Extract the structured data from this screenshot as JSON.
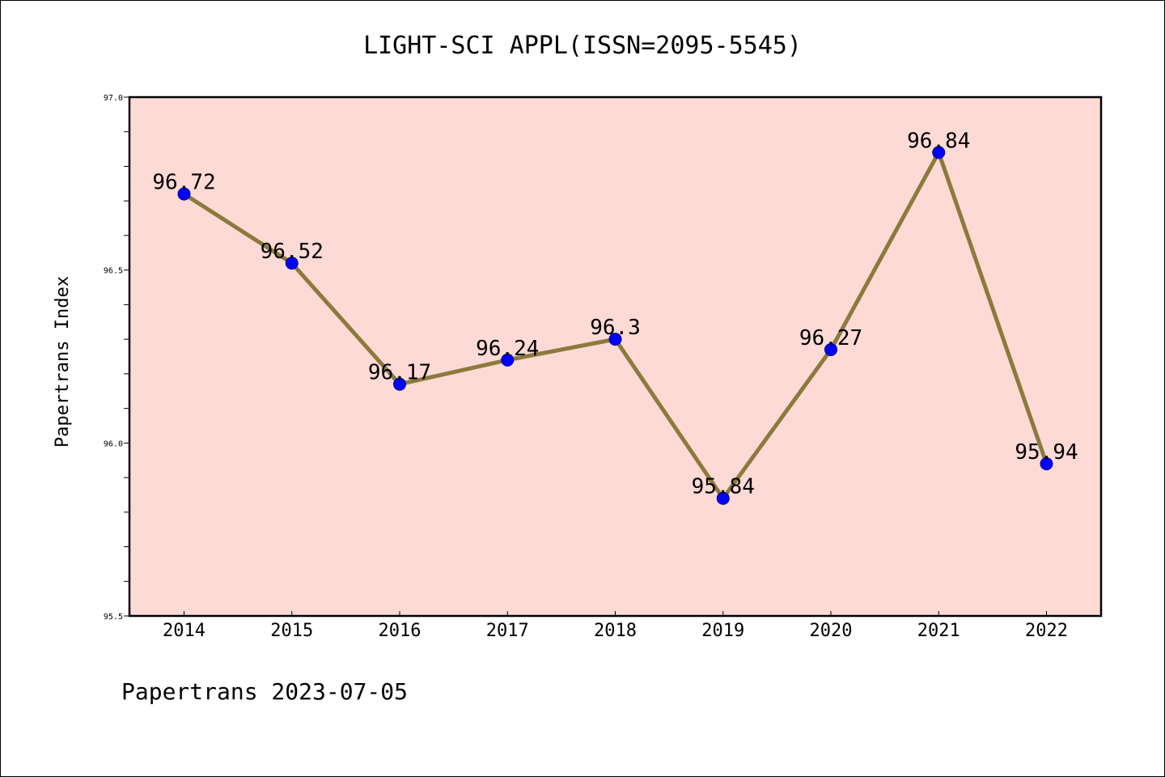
{
  "chart_data": {
    "type": "line",
    "title": "LIGHT-SCI APPL(ISSN=2095-5545)",
    "xlabel": "",
    "ylabel": "Papertrans Index",
    "categories": [
      "2014",
      "2015",
      "2016",
      "2017",
      "2018",
      "2019",
      "2020",
      "2021",
      "2022"
    ],
    "values": [
      96.72,
      96.52,
      96.17,
      96.24,
      96.3,
      95.84,
      96.27,
      96.84,
      95.94
    ],
    "data_labels": [
      "96.72",
      "96.52",
      "96.17",
      "96.24",
      "96.3",
      "95.84",
      "96.27",
      "96.84",
      "95.94"
    ],
    "ylim": [
      95.5,
      97.0
    ],
    "y_ticks": [
      "95.5",
      "96.0",
      "96.5",
      "97.0"
    ],
    "y_tick_values": [
      95.5,
      96.0,
      96.5,
      97.0
    ],
    "grid": false,
    "line_color": "#8c7a3c",
    "marker_color": "#0000ff",
    "plot_background": "#fddad6",
    "footer": "Papertrans 2023-07-05"
  }
}
